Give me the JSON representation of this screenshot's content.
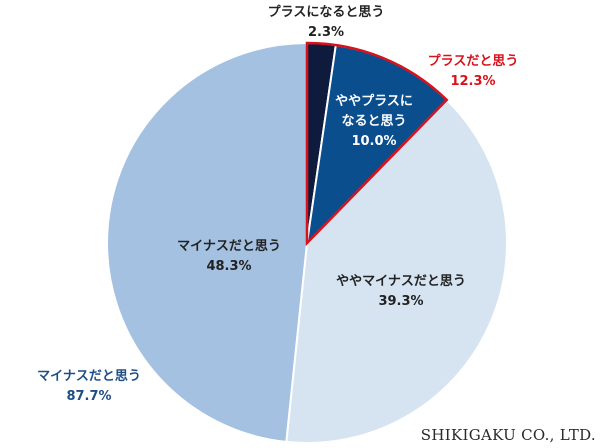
{
  "chart_data": {
    "type": "pie",
    "title": "",
    "start_angle_deg": 0,
    "direction": "clockwise",
    "slices": [
      {
        "label": "プラスになると思う",
        "value": 2.3,
        "value_label": "2.3%",
        "color": "#0f1b3d"
      },
      {
        "label": "ややプラスになると思う",
        "value": 10.0,
        "value_label": "10.0%",
        "color": "#0a4e8e"
      },
      {
        "label": "ややマイナスだと思う",
        "value": 39.3,
        "value_label": "39.3%",
        "color": "#d6e3f1"
      },
      {
        "label": "マイナスだと思う",
        "value": 48.3,
        "value_label": "48.3%",
        "color": "#a4c1e2"
      }
    ],
    "slice_label_lines": {
      "plus": "プラスになると思う",
      "somewhat_plus_line1": "ややプラスに",
      "somewhat_plus_line2": "なると思う",
      "somewhat_minus": "ややマイナスだと思う",
      "minus": "マイナスだと思う"
    },
    "group_annotations": [
      {
        "label": "プラスだと思う",
        "value": 12.3,
        "value_label": "12.3%",
        "color": "#d9111b",
        "outline": true
      },
      {
        "label": "マイナスだと思う",
        "value": 87.7,
        "value_label": "87.7%",
        "color": "#1f4e86",
        "outline": false
      }
    ]
  },
  "footer": {
    "brand": "SHIKIGAKU CO., LTD."
  }
}
